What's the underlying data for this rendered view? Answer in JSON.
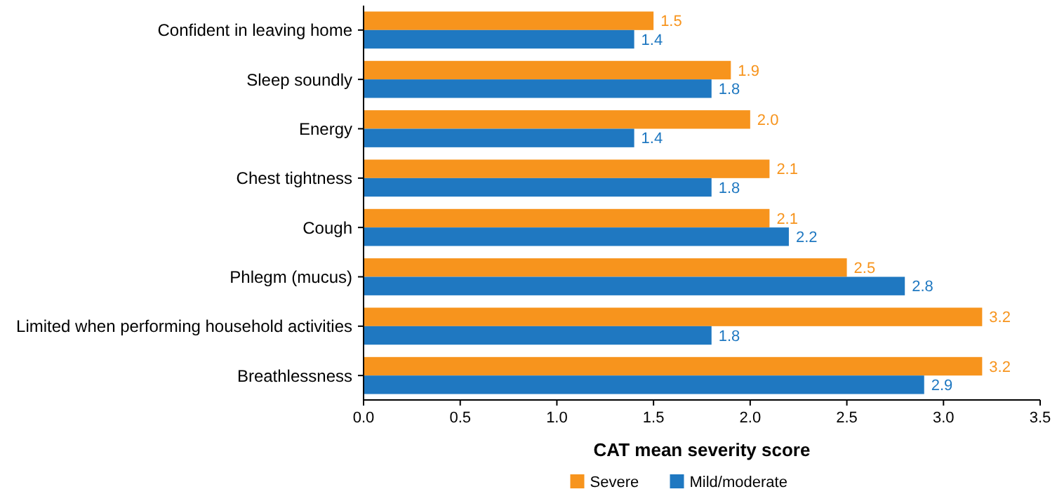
{
  "chart_data": {
    "type": "bar",
    "orientation": "horizontal",
    "xlabel": "CAT mean severity score",
    "categories": [
      "Confident in leaving home",
      "Sleep soundly",
      "Energy",
      "Chest tightness",
      "Cough",
      "Phlegm (mucus)",
      "Limited when performing household activities",
      "Breathlessness"
    ],
    "series": [
      {
        "name": "Severe",
        "color": "#f7941d",
        "values": [
          1.5,
          1.9,
          2.0,
          2.1,
          2.1,
          2.5,
          3.2,
          3.2
        ],
        "value_labels": [
          "1.5",
          "1.9",
          "2.0",
          "2.1",
          "2.1",
          "2.5",
          "3.2",
          "3.2"
        ]
      },
      {
        "name": "Mild/moderate",
        "color": "#1f78c1",
        "values": [
          1.4,
          1.8,
          1.4,
          1.8,
          2.2,
          2.8,
          1.8,
          2.9
        ],
        "value_labels": [
          "1.4",
          "1.8",
          "1.4",
          "1.8",
          "2.2",
          "2.8",
          "1.8",
          "2.9"
        ]
      }
    ],
    "xlim": [
      0,
      3.5
    ],
    "xticks": [
      {
        "value": 0,
        "label": "0.0"
      },
      {
        "value": 0.5,
        "label": "0.5"
      },
      {
        "value": 1,
        "label": "1.0"
      },
      {
        "value": 1.5,
        "label": "1.5"
      },
      {
        "value": 2,
        "label": "2.0"
      },
      {
        "value": 2.5,
        "label": "2.5"
      },
      {
        "value": 3,
        "label": "3.0"
      },
      {
        "value": 3.5,
        "label": "3.5"
      }
    ],
    "grid": false,
    "legend": "bottom"
  }
}
